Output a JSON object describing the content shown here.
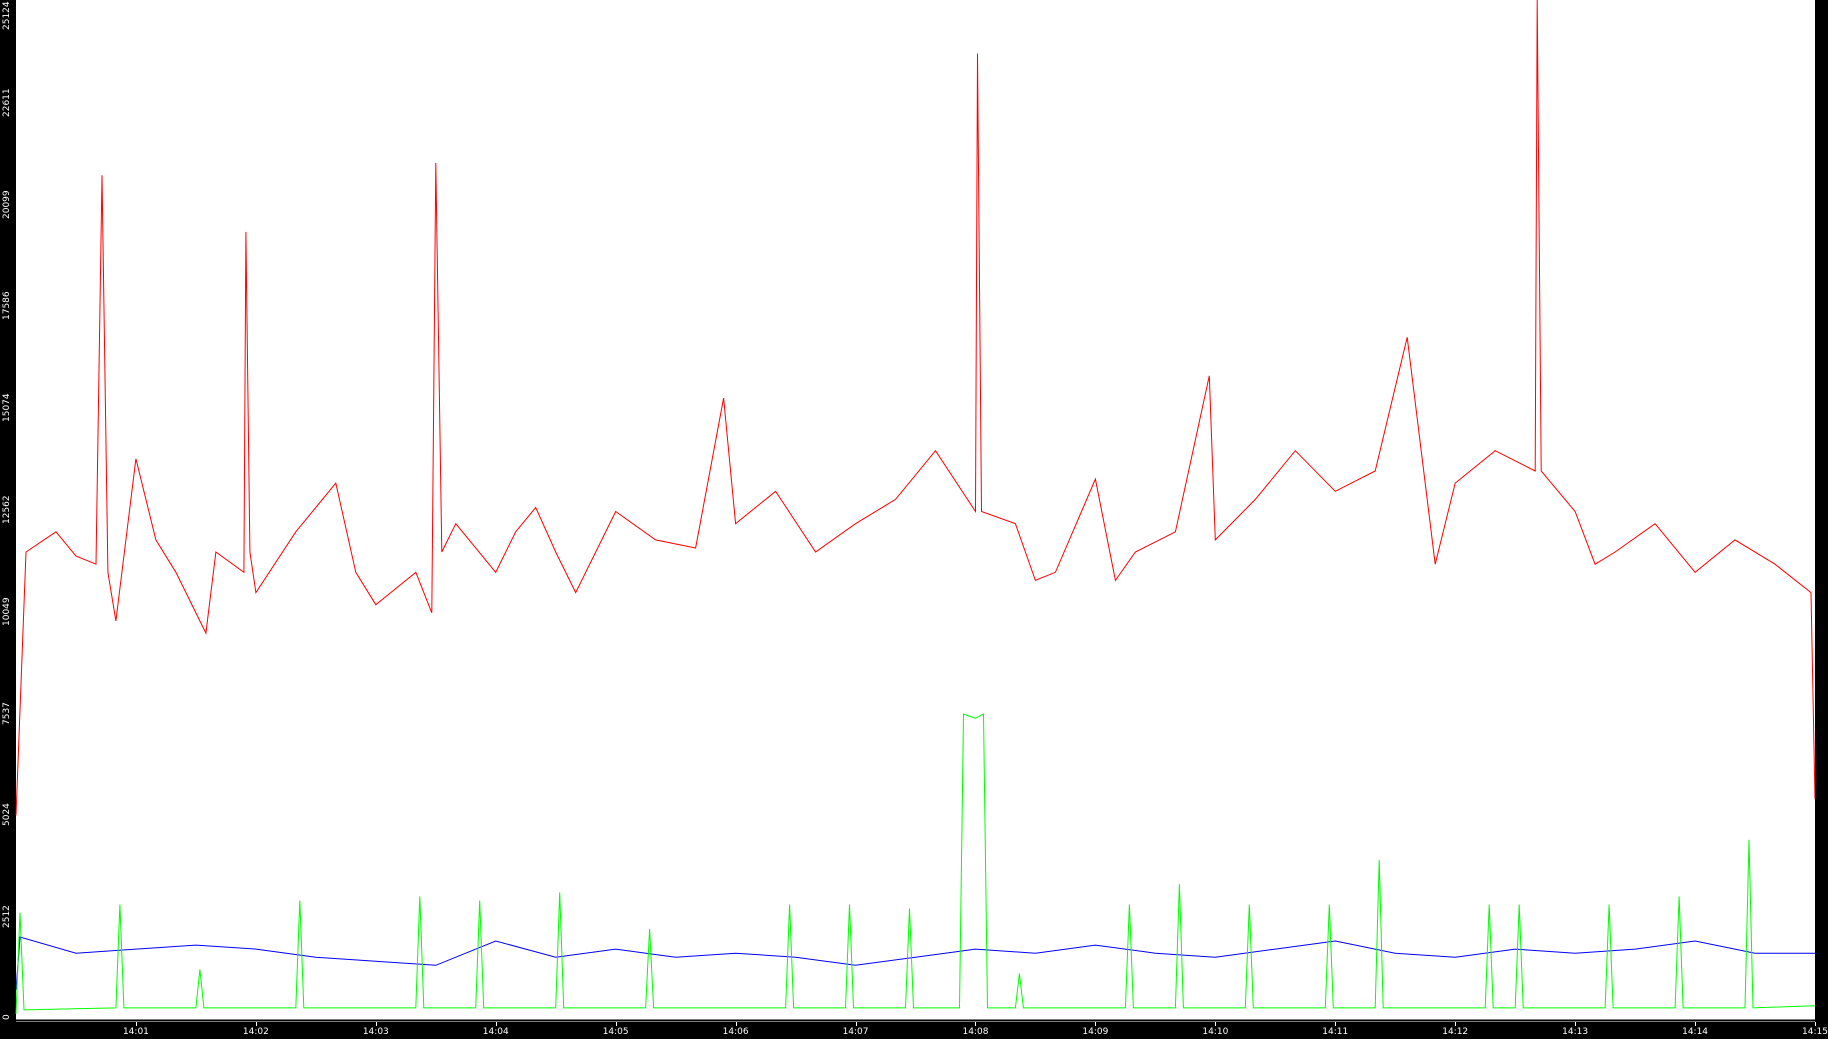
{
  "chart_data": {
    "type": "line",
    "ylim": [
      0,
      25124
    ],
    "xlim": [
      "14:00:00",
      "14:15:00"
    ],
    "yticks": [
      "0",
      "2512",
      "5024",
      "7537",
      "10049",
      "12562",
      "15074",
      "17586",
      "20099",
      "22611",
      "25124"
    ],
    "xticks": [
      "14:01",
      "14:02",
      "14:03",
      "14:04",
      "14:05",
      "14:06",
      "14:07",
      "14:08",
      "14:09",
      "14:10",
      "14:11",
      "14:12",
      "14:13",
      "14:14",
      "14:15"
    ],
    "grid": false,
    "series": [
      {
        "color": "#ff0000",
        "points": [
          [
            "14:00:00",
            5000
          ],
          [
            "14:00:05",
            11500
          ],
          [
            "14:00:20",
            12000
          ],
          [
            "14:00:30",
            11400
          ],
          [
            "14:00:40",
            11200
          ],
          [
            "14:00:43",
            20800
          ],
          [
            "14:00:46",
            11000
          ],
          [
            "14:00:50",
            9800
          ],
          [
            "14:01:00",
            13800
          ],
          [
            "14:01:10",
            11800
          ],
          [
            "14:01:20",
            11000
          ],
          [
            "14:01:35",
            9500
          ],
          [
            "14:01:40",
            11500
          ],
          [
            "14:01:54",
            11000
          ],
          [
            "14:01:55",
            19400
          ],
          [
            "14:01:57",
            11500
          ],
          [
            "14:02:00",
            10500
          ],
          [
            "14:02:20",
            12000
          ],
          [
            "14:02:30",
            12600
          ],
          [
            "14:02:40",
            13200
          ],
          [
            "14:02:50",
            11000
          ],
          [
            "14:03:00",
            10200
          ],
          [
            "14:03:20",
            11000
          ],
          [
            "14:03:28",
            10000
          ],
          [
            "14:03:30",
            21100
          ],
          [
            "14:03:33",
            11500
          ],
          [
            "14:03:40",
            12200
          ],
          [
            "14:04:00",
            11000
          ],
          [
            "14:04:10",
            12000
          ],
          [
            "14:04:20",
            12600
          ],
          [
            "14:04:30",
            11500
          ],
          [
            "14:04:40",
            10500
          ],
          [
            "14:05:00",
            12500
          ],
          [
            "14:05:20",
            11800
          ],
          [
            "14:05:40",
            11600
          ],
          [
            "14:05:54",
            15300
          ],
          [
            "14:06:00",
            12200
          ],
          [
            "14:06:20",
            13000
          ],
          [
            "14:06:40",
            11500
          ],
          [
            "14:07:00",
            12200
          ],
          [
            "14:07:20",
            12800
          ],
          [
            "14:07:40",
            14000
          ],
          [
            "14:08:00",
            12500
          ],
          [
            "14:08:01",
            23800
          ],
          [
            "14:08:03",
            12500
          ],
          [
            "14:08:20",
            12200
          ],
          [
            "14:08:30",
            10800
          ],
          [
            "14:08:40",
            11000
          ],
          [
            "14:09:00",
            13300
          ],
          [
            "14:09:10",
            10800
          ],
          [
            "14:09:20",
            11500
          ],
          [
            "14:09:40",
            12000
          ],
          [
            "14:09:57",
            15850
          ],
          [
            "14:10:00",
            11800
          ],
          [
            "14:10:20",
            12800
          ],
          [
            "14:10:40",
            14000
          ],
          [
            "14:11:00",
            13000
          ],
          [
            "14:11:20",
            13500
          ],
          [
            "14:11:36",
            16800
          ],
          [
            "14:11:50",
            11200
          ],
          [
            "14:12:00",
            13200
          ],
          [
            "14:12:20",
            14000
          ],
          [
            "14:12:40",
            13500
          ],
          [
            "14:12:41",
            25124
          ],
          [
            "14:12:43",
            13500
          ],
          [
            "14:13:00",
            12500
          ],
          [
            "14:13:10",
            11200
          ],
          [
            "14:13:20",
            11500
          ],
          [
            "14:13:40",
            12200
          ],
          [
            "14:14:00",
            11000
          ],
          [
            "14:14:20",
            11800
          ],
          [
            "14:14:40",
            11200
          ],
          [
            "14:14:58",
            10500
          ],
          [
            "14:15:00",
            5400
          ]
        ]
      },
      {
        "color": "#0000ff",
        "points": [
          [
            "14:00:00",
            700
          ],
          [
            "14:00:02",
            2000
          ],
          [
            "14:00:30",
            1600
          ],
          [
            "14:01:00",
            1700
          ],
          [
            "14:01:30",
            1800
          ],
          [
            "14:02:00",
            1700
          ],
          [
            "14:02:30",
            1500
          ],
          [
            "14:03:00",
            1400
          ],
          [
            "14:03:30",
            1300
          ],
          [
            "14:04:00",
            1900
          ],
          [
            "14:04:30",
            1500
          ],
          [
            "14:05:00",
            1700
          ],
          [
            "14:05:30",
            1500
          ],
          [
            "14:06:00",
            1600
          ],
          [
            "14:06:30",
            1500
          ],
          [
            "14:07:00",
            1300
          ],
          [
            "14:07:30",
            1500
          ],
          [
            "14:08:00",
            1700
          ],
          [
            "14:08:30",
            1600
          ],
          [
            "14:09:00",
            1800
          ],
          [
            "14:09:30",
            1600
          ],
          [
            "14:10:00",
            1500
          ],
          [
            "14:10:30",
            1700
          ],
          [
            "14:11:00",
            1900
          ],
          [
            "14:11:30",
            1600
          ],
          [
            "14:12:00",
            1500
          ],
          [
            "14:12:30",
            1700
          ],
          [
            "14:13:00",
            1600
          ],
          [
            "14:13:30",
            1700
          ],
          [
            "14:14:00",
            1900
          ],
          [
            "14:14:30",
            1600
          ],
          [
            "14:15:00",
            1600
          ]
        ]
      },
      {
        "color": "#00ff00",
        "points": [
          [
            "14:00:00",
            100
          ],
          [
            "14:00:02",
            2600
          ],
          [
            "14:00:04",
            200
          ],
          [
            "14:00:50",
            250
          ],
          [
            "14:00:52",
            2800
          ],
          [
            "14:00:54",
            250
          ],
          [
            "14:01:30",
            250
          ],
          [
            "14:01:32",
            1200
          ],
          [
            "14:01:34",
            250
          ],
          [
            "14:02:20",
            250
          ],
          [
            "14:02:22",
            2900
          ],
          [
            "14:02:24",
            250
          ],
          [
            "14:03:20",
            250
          ],
          [
            "14:03:22",
            3000
          ],
          [
            "14:03:24",
            250
          ],
          [
            "14:03:50",
            250
          ],
          [
            "14:03:52",
            2900
          ],
          [
            "14:03:54",
            250
          ],
          [
            "14:04:30",
            250
          ],
          [
            "14:04:32",
            3100
          ],
          [
            "14:04:34",
            250
          ],
          [
            "14:05:15",
            250
          ],
          [
            "14:05:17",
            2200
          ],
          [
            "14:05:19",
            250
          ],
          [
            "14:06:25",
            250
          ],
          [
            "14:06:27",
            2800
          ],
          [
            "14:06:29",
            250
          ],
          [
            "14:06:55",
            250
          ],
          [
            "14:06:57",
            2800
          ],
          [
            "14:06:59",
            250
          ],
          [
            "14:07:25",
            250
          ],
          [
            "14:07:27",
            2700
          ],
          [
            "14:07:29",
            250
          ],
          [
            "14:07:52",
            250
          ],
          [
            "14:07:54",
            7500
          ],
          [
            "14:08:00",
            7400
          ],
          [
            "14:08:04",
            7500
          ],
          [
            "14:08:06",
            250
          ],
          [
            "14:08:20",
            250
          ],
          [
            "14:08:22",
            1100
          ],
          [
            "14:08:24",
            250
          ],
          [
            "14:09:15",
            250
          ],
          [
            "14:09:17",
            2800
          ],
          [
            "14:09:19",
            250
          ],
          [
            "14:09:40",
            250
          ],
          [
            "14:09:42",
            3300
          ],
          [
            "14:09:44",
            250
          ],
          [
            "14:10:15",
            250
          ],
          [
            "14:10:17",
            2800
          ],
          [
            "14:10:19",
            250
          ],
          [
            "14:10:55",
            250
          ],
          [
            "14:10:57",
            2800
          ],
          [
            "14:10:59",
            250
          ],
          [
            "14:11:20",
            250
          ],
          [
            "14:11:22",
            3900
          ],
          [
            "14:11:24",
            250
          ],
          [
            "14:12:15",
            250
          ],
          [
            "14:12:17",
            2800
          ],
          [
            "14:12:19",
            250
          ],
          [
            "14:12:30",
            250
          ],
          [
            "14:12:32",
            2800
          ],
          [
            "14:12:34",
            250
          ],
          [
            "14:13:15",
            250
          ],
          [
            "14:13:17",
            2800
          ],
          [
            "14:13:19",
            250
          ],
          [
            "14:13:50",
            250
          ],
          [
            "14:13:52",
            3000
          ],
          [
            "14:13:54",
            250
          ],
          [
            "14:14:25",
            250
          ],
          [
            "14:14:27",
            4400
          ],
          [
            "14:14:29",
            250
          ],
          [
            "14:15:00",
            300
          ]
        ]
      }
    ]
  }
}
